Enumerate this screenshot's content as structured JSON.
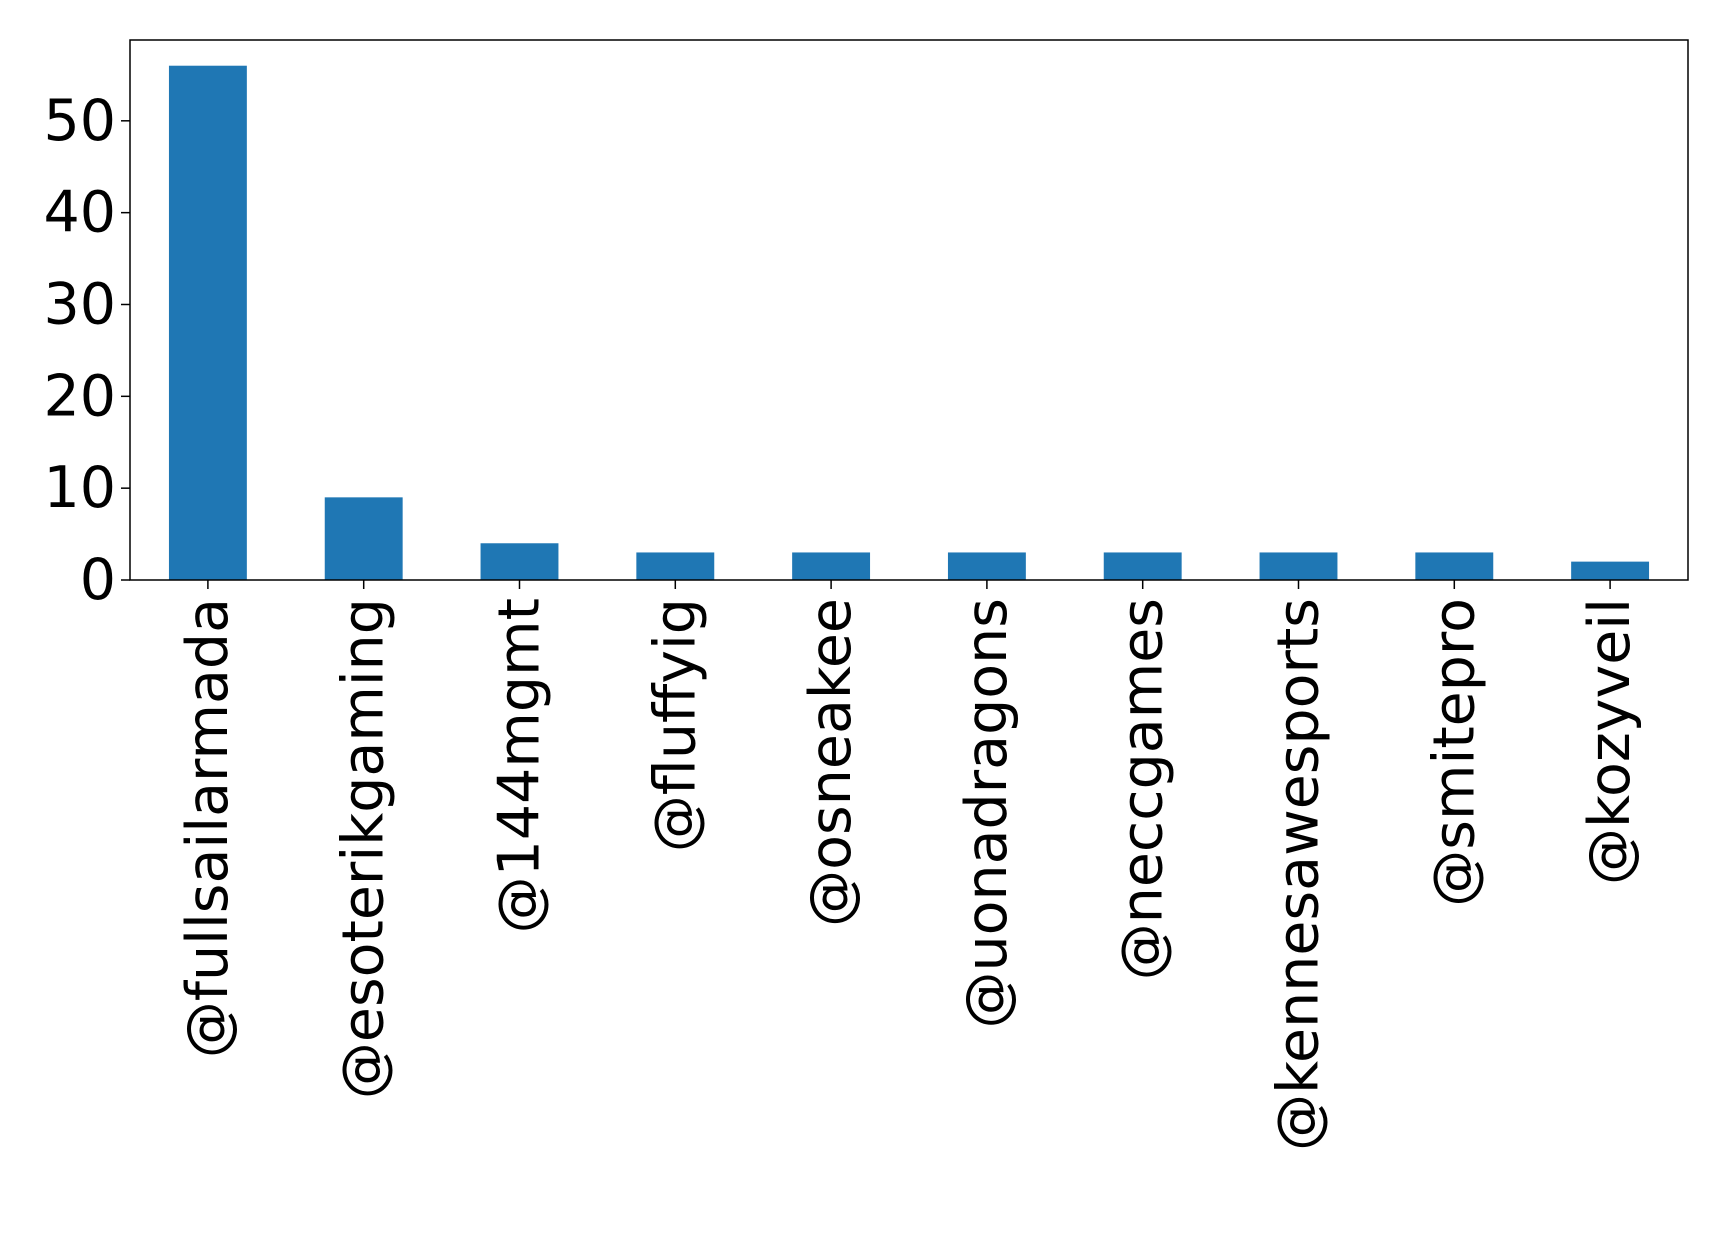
{
  "chart_data": {
    "type": "bar",
    "title": "",
    "xlabel": "",
    "ylabel": "",
    "categories": [
      "@fullsailarmada",
      "@esoterikgaming",
      "@144mgmt",
      "@fluffyig",
      "@osneakee",
      "@uonadragons",
      "@neccgames",
      "@kennesawesports",
      "@smitepro",
      "@kozyveil"
    ],
    "values": [
      56,
      9,
      4,
      3,
      3,
      3,
      3,
      3,
      3,
      2
    ],
    "ylim": [
      0,
      58.8
    ],
    "yticks": [
      0,
      10,
      20,
      30,
      40,
      50
    ],
    "grid": false,
    "legend": "none",
    "colors": {
      "bar": "#1f77b4",
      "axis": "#000000"
    }
  }
}
